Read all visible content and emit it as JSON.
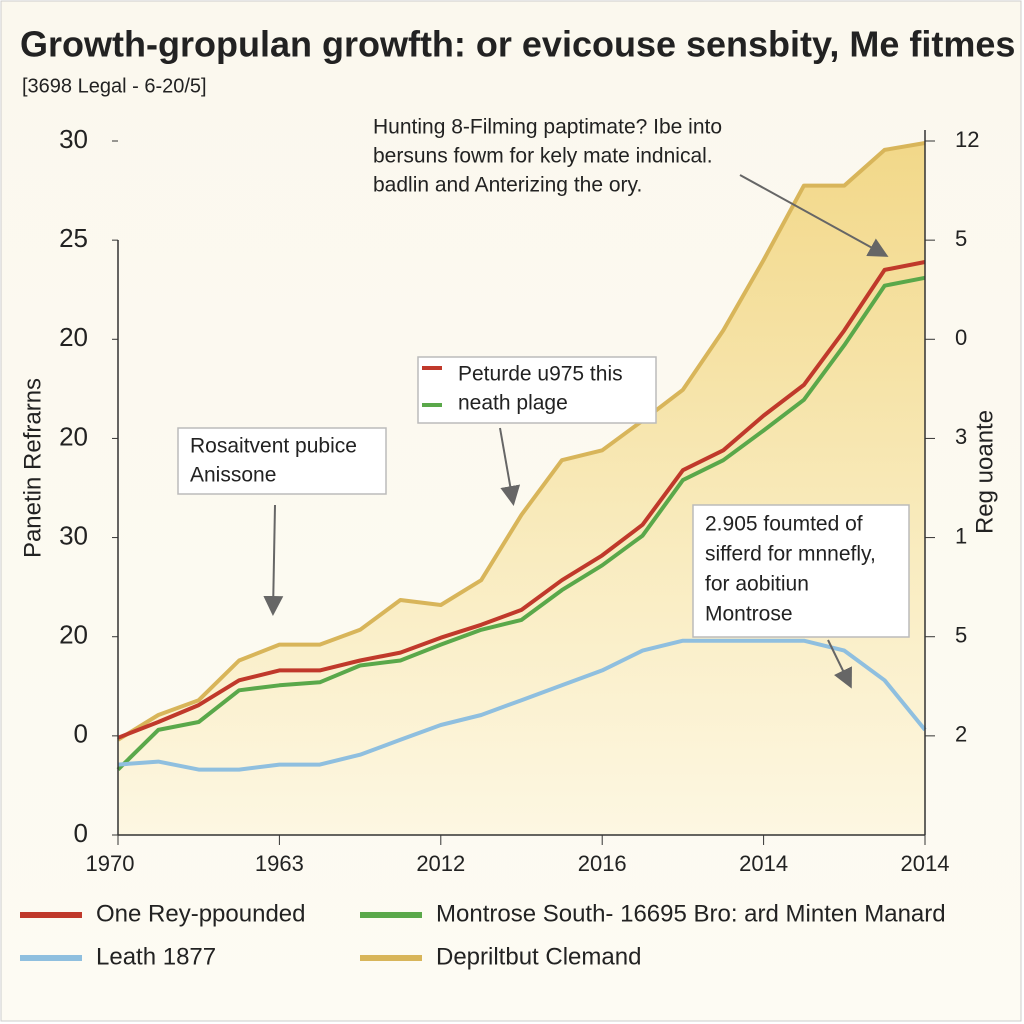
{
  "chart_data": {
    "type": "line",
    "title": "Growth-gropulan growfth: or evicouse sensbity, Me fitmes",
    "subtitle": "[3698 Legal - 6-20/5]",
    "ylabel": "Panetin Refrarns",
    "y2label": "Reg uoante",
    "x": [
      0,
      0.5,
      1,
      1.5,
      2,
      2.5,
      3,
      3.5,
      4,
      4.5,
      5,
      5.5,
      6,
      6.5,
      7,
      7.5,
      8,
      8.5,
      9,
      9.5,
      10
    ],
    "xlim": [
      0,
      10
    ],
    "xticks": [
      {
        "value": 0,
        "label": "1970"
      },
      {
        "value": 2,
        "label": "1963"
      },
      {
        "value": 4,
        "label": "2012"
      },
      {
        "value": 6,
        "label": "2016"
      },
      {
        "value": 8,
        "label": "2014"
      },
      {
        "value": 10,
        "label": "2014"
      }
    ],
    "ylim": [
      0,
      7
    ],
    "yticks": [
      {
        "value": 0,
        "label": "0"
      },
      {
        "value": 1,
        "label": "0"
      },
      {
        "value": 2,
        "label": "20"
      },
      {
        "value": 3,
        "label": "30"
      },
      {
        "value": 4,
        "label": "20"
      },
      {
        "value": 5,
        "label": "20"
      },
      {
        "value": 6,
        "label": "25"
      },
      {
        "value": 7,
        "label": "30"
      }
    ],
    "y2lim": [
      0,
      7
    ],
    "y2ticks": [
      {
        "value": 1,
        "label": "2"
      },
      {
        "value": 2,
        "label": "5"
      },
      {
        "value": 3,
        "label": "1"
      },
      {
        "value": 4,
        "label": "3"
      },
      {
        "value": 5,
        "label": "0"
      },
      {
        "value": 6,
        "label": "5"
      },
      {
        "value": 7,
        "label": "12"
      }
    ],
    "series": [
      {
        "name": "One Rey-ppounded",
        "color": "#c0392b",
        "values": [
          0.98,
          1.14,
          1.31,
          1.56,
          1.66,
          1.66,
          1.76,
          1.84,
          1.99,
          2.12,
          2.27,
          2.57,
          2.82,
          3.13,
          3.68,
          3.88,
          4.23,
          4.54,
          5.09,
          5.7,
          5.78
        ]
      },
      {
        "name": "Montrose  South- 16695 Вro: ard Minten Manard",
        "color": "#5aa84a",
        "values": [
          0.66,
          1.06,
          1.14,
          1.46,
          1.51,
          1.54,
          1.71,
          1.76,
          1.92,
          2.07,
          2.17,
          2.47,
          2.72,
          3.02,
          3.58,
          3.78,
          4.08,
          4.39,
          4.94,
          5.54,
          5.62
        ]
      },
      {
        "name": "Leath 1877",
        "color": "#8fbfdf",
        "values": [
          0.71,
          0.74,
          0.66,
          0.66,
          0.71,
          0.71,
          0.81,
          0.96,
          1.11,
          1.21,
          1.36,
          1.51,
          1.66,
          1.86,
          1.96,
          1.96,
          1.96,
          1.96,
          1.86,
          1.56,
          1.06
        ]
      },
      {
        "name": "Depriltbut Clemand",
        "color": "#d8b55a",
        "area": true,
        "values": [
          0.96,
          1.21,
          1.36,
          1.76,
          1.92,
          1.92,
          2.07,
          2.37,
          2.32,
          2.57,
          3.23,
          3.78,
          3.88,
          4.18,
          4.49,
          5.09,
          5.8,
          6.55,
          6.55,
          6.91,
          6.98
        ]
      }
    ],
    "annotations": [
      {
        "lines": [
          "Hunting 8-Filming paptimate? Ibe into",
          "bersuns fowm for kely mate indnical.",
          "badlin and Anterizing the ory."
        ]
      },
      {
        "lines": [
          "Rosaitvent pubice",
          "Anissone"
        ]
      },
      {
        "lines": [
          "Peturde u975 this",
          "neath plage"
        ]
      },
      {
        "lines": [
          "2.905 foumted of",
          "sifferd for mnnefly,",
          "for aobitiun",
          "Montrose"
        ]
      }
    ]
  }
}
